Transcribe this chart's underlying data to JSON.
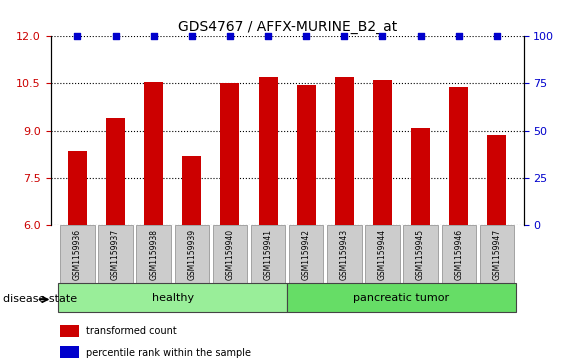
{
  "title": "GDS4767 / AFFX-MURINE_B2_at",
  "samples": [
    "GSM1159936",
    "GSM1159937",
    "GSM1159938",
    "GSM1159939",
    "GSM1159940",
    "GSM1159941",
    "GSM1159942",
    "GSM1159943",
    "GSM1159944",
    "GSM1159945",
    "GSM1159946",
    "GSM1159947"
  ],
  "values": [
    8.35,
    9.4,
    10.55,
    8.2,
    10.5,
    10.7,
    10.45,
    10.7,
    10.62,
    9.1,
    10.4,
    8.85
  ],
  "percentile_ranks": [
    100,
    100,
    100,
    100,
    100,
    100,
    100,
    100,
    100,
    100,
    100,
    100
  ],
  "bar_color": "#cc0000",
  "percentile_color": "#0000cc",
  "ylim_left": [
    6,
    12
  ],
  "ylim_right": [
    0,
    100
  ],
  "yticks_left": [
    6,
    7.5,
    9,
    10.5,
    12
  ],
  "yticks_right": [
    0,
    25,
    50,
    75,
    100
  ],
  "groups": [
    {
      "label": "healthy",
      "start": 0,
      "end": 6,
      "color": "#99ee99"
    },
    {
      "label": "pancreatic tumor",
      "start": 6,
      "end": 12,
      "color": "#66dd66"
    }
  ],
  "disease_state_label": "disease state",
  "legend_items": [
    {
      "label": "transformed count",
      "color": "#cc0000",
      "marker": "s"
    },
    {
      "label": "percentile rank within the sample",
      "color": "#0000cc",
      "marker": "s"
    }
  ],
  "background_color": "#ffffff",
  "tick_label_bg": "#cccccc"
}
